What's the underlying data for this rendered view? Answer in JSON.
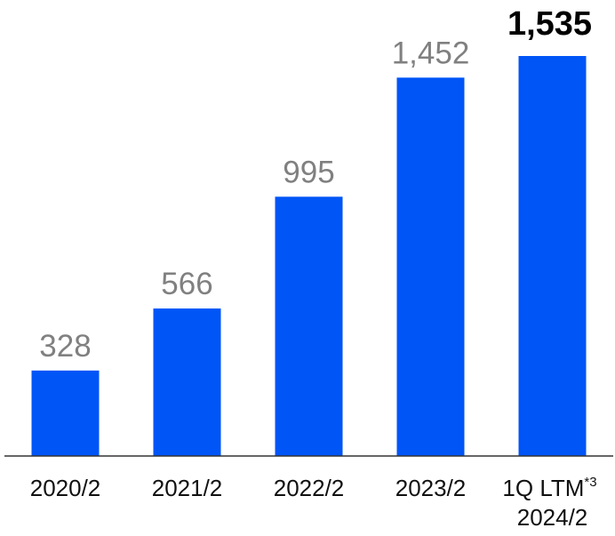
{
  "chart_data": {
    "type": "bar",
    "categories": [
      {
        "line1": "2020/2",
        "line2": "",
        "sup": ""
      },
      {
        "line1": "2021/2",
        "line2": "",
        "sup": ""
      },
      {
        "line1": "2022/2",
        "line2": "",
        "sup": ""
      },
      {
        "line1": "2023/2",
        "line2": "",
        "sup": ""
      },
      {
        "line1": "1Q LTM",
        "line2": "2024/2",
        "sup": "*3"
      }
    ],
    "values": [
      328,
      566,
      995,
      1452,
      1535
    ],
    "value_labels": [
      "328",
      "566",
      "995",
      "1,452",
      "1,535"
    ],
    "highlight_index": 4,
    "ylim": [
      0,
      1535
    ],
    "grid": false,
    "title": "",
    "xlabel": "",
    "ylabel": ""
  },
  "colors": {
    "bar": "#0055f7",
    "label_normal": "#808080",
    "label_highlight": "#000000",
    "axis": "#333333"
  }
}
